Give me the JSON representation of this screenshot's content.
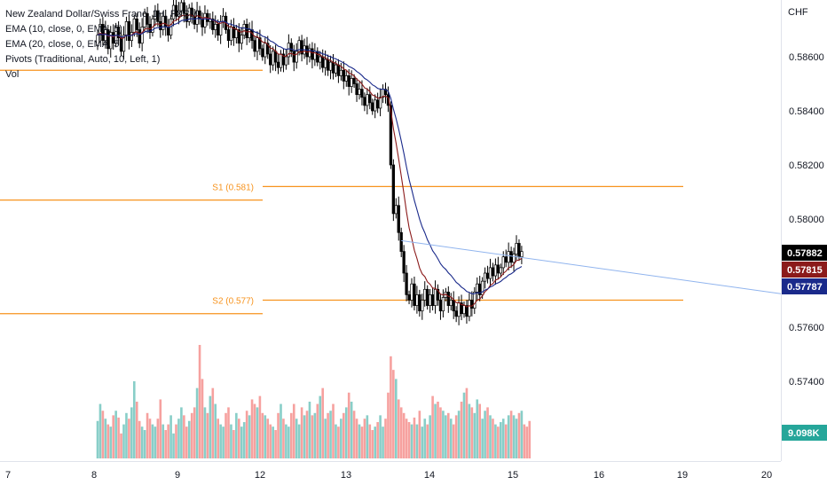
{
  "legend": {
    "symbol": "New Zealand Dollar/Swiss Franc, 1H, FXCM",
    "ema10": "EMA (10, close, 0, EMA, 5)",
    "ema20": "EMA (20, close, 0, EMA, 5)",
    "pivots": "Pivots (Traditional, Auto, 10, Left, 1)",
    "vol": "Vol"
  },
  "price_scale": {
    "currency": "CHF",
    "ticks": [
      "0.58600",
      "0.58400",
      "0.58200",
      "0.58000",
      "0.57600",
      "0.57400"
    ],
    "tick_values": [
      0.586,
      0.584,
      0.582,
      0.58,
      0.576,
      0.574
    ],
    "badges": [
      {
        "label": "0.57882",
        "value": 0.57882,
        "color": "#000000"
      },
      {
        "label": "0.57815",
        "value": 0.57815,
        "color": "#8b1a1a"
      },
      {
        "label": "0.57787",
        "value": 0.57787,
        "color": "#1a2a8b"
      }
    ],
    "volume_badge": {
      "label": "9.098K",
      "color": "#26a69a"
    }
  },
  "time_axis": {
    "labels": [
      "7",
      "8",
      "9",
      "12",
      "13",
      "14",
      "15",
      "16",
      "19",
      "20"
    ]
  },
  "pivot_labels": {
    "s1": "S1 (0.581)",
    "s2": "S2 (0.577)"
  },
  "colors": {
    "up": "#ffffff",
    "down": "#000000",
    "pivot": "#f7931e",
    "ema10": "#8b1a1a",
    "ema20": "#1a2a8b",
    "vol_up": "#26a69a",
    "vol_down": "#ef5350",
    "trendline": "#90b4ee"
  },
  "chart_data": {
    "type": "candlestick",
    "title": "New Zealand Dollar/Swiss Franc, 1H, FXCM",
    "yaxis": {
      "range": [
        0.5728,
        0.5875
      ]
    },
    "pivot_levels": [
      {
        "name": "S1 (0.581)",
        "value": 0.5812
      },
      {
        "name": "S2 (0.577)",
        "value": 0.577
      }
    ],
    "prior_pivot_levels": [
      {
        "value": 0.5855
      },
      {
        "value": 0.5807
      },
      {
        "value": 0.5765
      }
    ],
    "trendline": {
      "from": {
        "bar": 116,
        "price": 0.5792
      },
      "to": {
        "bar": 200,
        "price": 0.5767
      }
    },
    "closes": [
      0.5868,
      0.5872,
      0.5866,
      0.587,
      0.5863,
      0.5869,
      0.5865,
      0.5871,
      0.5867,
      0.5862,
      0.5868,
      0.5873,
      0.5866,
      0.5869,
      0.5874,
      0.587,
      0.5865,
      0.5871,
      0.5876,
      0.5872,
      0.5869,
      0.5874,
      0.5877,
      0.5873,
      0.587,
      0.5875,
      0.5871,
      0.5868,
      0.5874,
      0.5879,
      0.5875,
      0.5877,
      0.588,
      0.5876,
      0.5873,
      0.5878,
      0.5875,
      0.5872,
      0.5877,
      0.5874,
      0.5871,
      0.5876,
      0.5873,
      0.5874,
      0.587,
      0.5872,
      0.5868,
      0.5873,
      0.5875,
      0.587,
      0.5866,
      0.5871,
      0.5867,
      0.587,
      0.5865,
      0.5868,
      0.5872,
      0.5867,
      0.587,
      0.5866,
      0.5862,
      0.5867,
      0.5863,
      0.586,
      0.5865,
      0.5861,
      0.5857,
      0.5862,
      0.5858,
      0.5856,
      0.5861,
      0.5857,
      0.586,
      0.5865,
      0.5862,
      0.5858,
      0.5862,
      0.5866,
      0.5861,
      0.5864,
      0.586,
      0.5863,
      0.5859,
      0.5862,
      0.5858,
      0.586,
      0.5856,
      0.5859,
      0.5855,
      0.5858,
      0.5854,
      0.5857,
      0.5853,
      0.5855,
      0.5851,
      0.5853,
      0.5849,
      0.5852,
      0.585,
      0.5846,
      0.5848,
      0.5845,
      0.5842,
      0.5846,
      0.5843,
      0.584,
      0.5844,
      0.5841,
      0.5845,
      0.5848,
      0.5846,
      0.5842,
      0.582,
      0.5802,
      0.5805,
      0.5795,
      0.5788,
      0.578,
      0.5772,
      0.577,
      0.5776,
      0.5768,
      0.5772,
      0.5766,
      0.577,
      0.5774,
      0.5768,
      0.5772,
      0.5768,
      0.5774,
      0.577,
      0.5766,
      0.5771,
      0.5773,
      0.5768,
      0.577,
      0.5766,
      0.5764,
      0.5769,
      0.5765,
      0.5768,
      0.5764,
      0.577,
      0.5767,
      0.5773,
      0.5776,
      0.5772,
      0.5777,
      0.578,
      0.5778,
      0.5782,
      0.5779,
      0.5783,
      0.578,
      0.5782,
      0.5786,
      0.5784,
      0.5788,
      0.5784,
      0.5787,
      0.5791,
      0.5786,
      0.5788
    ],
    "volumes": [
      0.33,
      0.48,
      0.42,
      0.35,
      0.3,
      0.28,
      0.38,
      0.42,
      0.36,
      0.22,
      0.3,
      0.4,
      0.35,
      0.45,
      0.68,
      0.5,
      0.33,
      0.28,
      0.25,
      0.4,
      0.35,
      0.3,
      0.28,
      0.35,
      0.52,
      0.3,
      0.25,
      0.3,
      0.38,
      0.22,
      0.3,
      0.35,
      0.45,
      0.38,
      0.28,
      0.33,
      0.4,
      0.45,
      0.62,
      1.0,
      0.7,
      0.45,
      0.4,
      0.55,
      0.62,
      0.48,
      0.35,
      0.3,
      0.28,
      0.4,
      0.45,
      0.3,
      0.25,
      0.4,
      0.35,
      0.28,
      0.32,
      0.42,
      0.38,
      0.52,
      0.48,
      0.45,
      0.55,
      0.4,
      0.38,
      0.35,
      0.3,
      0.28,
      0.25,
      0.4,
      0.48,
      0.35,
      0.3,
      0.28,
      0.4,
      0.48,
      0.35,
      0.3,
      0.45,
      0.38,
      0.42,
      0.5,
      0.38,
      0.4,
      0.48,
      0.55,
      0.62,
      0.35,
      0.4,
      0.42,
      0.48,
      0.3,
      0.28,
      0.35,
      0.4,
      0.45,
      0.58,
      0.5,
      0.42,
      0.35,
      0.3,
      0.28,
      0.35,
      0.38,
      0.3,
      0.25,
      0.28,
      0.32,
      0.38,
      0.28,
      0.35,
      0.58,
      0.9,
      0.78,
      0.7,
      0.52,
      0.45,
      0.4,
      0.35,
      0.32,
      0.3,
      0.36,
      0.3,
      0.42,
      0.28,
      0.35,
      0.3,
      0.38,
      0.55,
      0.48,
      0.5,
      0.45,
      0.42,
      0.38,
      0.4,
      0.35,
      0.3,
      0.38,
      0.42,
      0.5,
      0.58,
      0.62,
      0.48,
      0.45,
      0.4,
      0.52,
      0.48,
      0.35,
      0.42,
      0.45,
      0.38,
      0.35,
      0.3,
      0.28,
      0.32,
      0.35,
      0.3,
      0.38,
      0.42,
      0.38,
      0.35,
      0.4,
      0.42,
      0.3,
      0.28,
      0.33
    ]
  }
}
